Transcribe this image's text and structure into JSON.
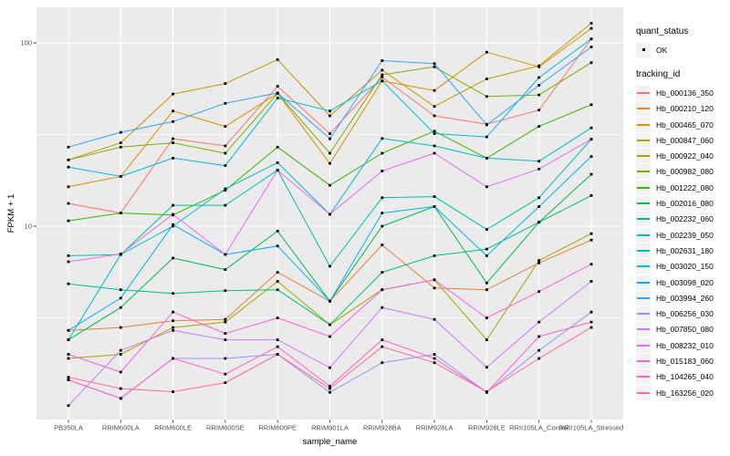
{
  "legend": {
    "quant_status_title": "quant_status",
    "quant_status_item": "OK",
    "tracking_id_title": "tracking_id"
  },
  "chart_data": {
    "type": "line",
    "xlabel": "sample_name",
    "ylabel": "FPKM + 1",
    "y_scale": "log10",
    "y_tick_values": [
      10,
      100
    ],
    "y_tick_labels": [
      "10",
      "100"
    ],
    "y_minor_values": [
      3.1623,
      31.623
    ],
    "ylim": [
      0.88,
      156
    ],
    "grid": "on",
    "panel_bg": "#EBEBEB",
    "grid_color": "#FFFFFF",
    "tick_label_color": "#4D4D4D",
    "point_color": "#000000",
    "legend_position": "right",
    "categories": [
      "PB350LA",
      "RRIM600LA",
      "RRIM600LE",
      "RRIM600SE",
      "RRIM600PE",
      "RRIM901LA",
      "RRIM928BA",
      "RRIM928LA",
      "RRIM928LE",
      "RRII105LA_Control",
      "RRII105LA_Stressed"
    ],
    "series": [
      {
        "name": "Hb_000136_350",
        "color": "#F8766D",
        "values": [
          13.3,
          11.8,
          30,
          27.4,
          58,
          32,
          65,
          40,
          36,
          43,
          105
        ]
      },
      {
        "name": "Hb_000210_120",
        "color": "#EA8331",
        "values": [
          2.7,
          2.8,
          3.05,
          3.1,
          5.6,
          3.9,
          7.9,
          4.6,
          4.5,
          6.3,
          8.4
        ]
      },
      {
        "name": "Hb_000465_070",
        "color": "#D89000",
        "values": [
          16.4,
          18.7,
          42.5,
          35,
          53,
          22,
          62,
          55,
          89,
          74,
          120
        ]
      },
      {
        "name": "Hb_000847_060",
        "color": "#C09B00",
        "values": [
          23,
          28.5,
          52.6,
          60,
          81,
          40,
          71,
          45,
          63.5,
          75,
          128
        ]
      },
      {
        "name": "Hb_000922_040",
        "color": "#A3A500",
        "values": [
          1.9,
          2.0,
          2.8,
          3.0,
          5.0,
          2.9,
          4.5,
          5.1,
          2.4,
          6.5,
          9.1
        ]
      },
      {
        "name": "Hb_000982_080",
        "color": "#7CAE00",
        "values": [
          23,
          27,
          28.5,
          25,
          53,
          25,
          67,
          74,
          51,
          52,
          78
        ]
      },
      {
        "name": "Hb_001222_080",
        "color": "#39B600",
        "values": [
          10.7,
          11.8,
          11.5,
          15.7,
          27,
          16.7,
          25,
          33,
          23.5,
          35,
          46
        ]
      },
      {
        "name": "Hb_002016_080",
        "color": "#00BB4E",
        "values": [
          2.4,
          3.6,
          6.7,
          5.8,
          9.4,
          3.9,
          10,
          12.8,
          4.9,
          10.5,
          19.2
        ]
      },
      {
        "name": "Hb_002232_060",
        "color": "#00BF7D",
        "values": [
          4.85,
          4.5,
          4.3,
          4.45,
          4.5,
          2.9,
          5.6,
          6.9,
          7.5,
          10.5,
          14.7
        ]
      },
      {
        "name": "Hb_002239_050",
        "color": "#00C1A3",
        "values": [
          6.9,
          7.0,
          13,
          13,
          20.2,
          6.05,
          14.3,
          14.5,
          9.6,
          14.3,
          29.8
        ]
      },
      {
        "name": "Hb_002631_180",
        "color": "#00BFC4",
        "values": [
          2.4,
          7.0,
          10,
          16,
          22.2,
          11.6,
          30.1,
          27.4,
          23.5,
          22.6,
          34.4
        ]
      },
      {
        "name": "Hb_003020_150",
        "color": "#00BAE0",
        "values": [
          21,
          18.7,
          23.5,
          21.4,
          50,
          42.5,
          62,
          32,
          30.7,
          64.7,
          105
        ]
      },
      {
        "name": "Hb_003098_020",
        "color": "#00B0F6",
        "values": [
          2.7,
          4.05,
          10.2,
          7.0,
          7.8,
          3.9,
          11.8,
          12.8,
          6.9,
          12.8,
          24
        ]
      },
      {
        "name": "Hb_003994_260",
        "color": "#35A2FF",
        "values": [
          27,
          32.5,
          37.2,
          46.8,
          53.3,
          30,
          80,
          77,
          35.7,
          58.7,
          95
        ]
      },
      {
        "name": "Hb_006256_030",
        "color": "#9590FF",
        "values": [
          1.45,
          1.15,
          1.9,
          1.9,
          2.0,
          1.24,
          1.8,
          2.0,
          1.24,
          2.1,
          3.4
        ]
      },
      {
        "name": "Hb_007850_080",
        "color": "#C77CFF",
        "values": [
          1.05,
          2.1,
          2.7,
          2.4,
          2.4,
          1.69,
          3.6,
          3.1,
          1.7,
          3.0,
          5.0
        ]
      },
      {
        "name": "Hb_008232_010",
        "color": "#E76BF3",
        "values": [
          6.4,
          7.05,
          11.6,
          7.0,
          20.2,
          11.6,
          20,
          25,
          16.4,
          20.5,
          29.8
        ]
      },
      {
        "name": "Hb_015183_060",
        "color": "#FA62DB",
        "values": [
          2.0,
          1.6,
          3.4,
          2.6,
          3.16,
          2.5,
          4.5,
          5.1,
          3.16,
          4.4,
          6.2
        ]
      },
      {
        "name": "Hb_104265_040",
        "color": "#FF62BC",
        "values": [
          1.45,
          1.15,
          1.9,
          1.56,
          2.2,
          1.34,
          2.4,
          1.9,
          1.24,
          2.5,
          3.0
        ]
      },
      {
        "name": "Hb_163256_020",
        "color": "#FF6A98",
        "values": [
          1.5,
          1.3,
          1.25,
          1.4,
          2.0,
          1.3,
          2.2,
          1.8,
          1.25,
          1.9,
          2.8
        ]
      }
    ]
  }
}
